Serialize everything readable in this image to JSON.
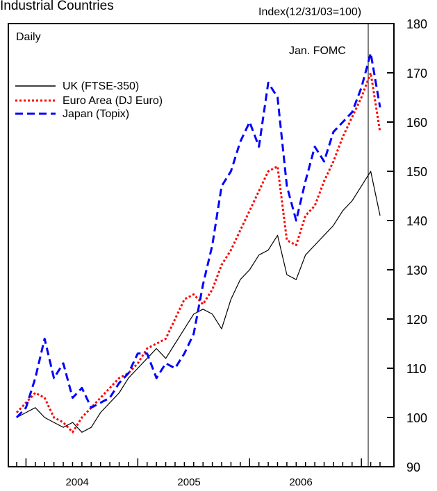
{
  "chart_data": {
    "type": "line",
    "title": "Industrial Countries",
    "unit_label": "Index(12/31/03=100)",
    "frequency_label": "Daily",
    "annotation": "Jan. FOMC",
    "x_tick_labels": [
      "2004",
      "2005",
      "2006"
    ],
    "ylim": [
      90,
      180
    ],
    "y_ticks": [
      90,
      100,
      110,
      120,
      130,
      140,
      150,
      160,
      170,
      180
    ],
    "xlim": [
      "2003-12",
      "2007-03"
    ],
    "grid": false,
    "legend_position": "top-left",
    "series": [
      {
        "name": "UK (FTSE-350)",
        "color": "#000000",
        "style": "solid",
        "x": [
          "2003-12",
          "2004-01",
          "2004-02",
          "2004-03",
          "2004-04",
          "2004-05",
          "2004-06",
          "2004-07",
          "2004-08",
          "2004-09",
          "2004-10",
          "2004-11",
          "2004-12",
          "2005-01",
          "2005-02",
          "2005-03",
          "2005-04",
          "2005-05",
          "2005-06",
          "2005-07",
          "2005-08",
          "2005-09",
          "2005-10",
          "2005-11",
          "2005-12",
          "2006-01",
          "2006-02",
          "2006-03",
          "2006-04",
          "2006-05",
          "2006-06",
          "2006-07",
          "2006-08",
          "2006-09",
          "2006-10",
          "2006-11",
          "2006-12",
          "2007-01",
          "2007-02",
          "2007-03"
        ],
        "values": [
          100,
          101,
          102,
          100,
          99,
          98,
          99,
          97,
          98,
          101,
          103,
          105,
          108,
          110,
          112,
          114,
          112,
          115,
          118,
          121,
          122,
          121,
          118,
          124,
          128,
          130,
          133,
          134,
          137,
          129,
          128,
          133,
          135,
          137,
          139,
          142,
          144,
          147,
          150,
          141
        ]
      },
      {
        "name": "Euro Area (DJ Euro)",
        "color": "#ff0000",
        "style": "dotted",
        "x": [
          "2003-12",
          "2004-01",
          "2004-02",
          "2004-03",
          "2004-04",
          "2004-05",
          "2004-06",
          "2004-07",
          "2004-08",
          "2004-09",
          "2004-10",
          "2004-11",
          "2004-12",
          "2005-01",
          "2005-02",
          "2005-03",
          "2005-04",
          "2005-05",
          "2005-06",
          "2005-07",
          "2005-08",
          "2005-09",
          "2005-10",
          "2005-11",
          "2005-12",
          "2006-01",
          "2006-02",
          "2006-03",
          "2006-04",
          "2006-05",
          "2006-06",
          "2006-07",
          "2006-08",
          "2006-09",
          "2006-10",
          "2006-11",
          "2006-12",
          "2007-01",
          "2007-02",
          "2007-03"
        ],
        "values": [
          101,
          103,
          105,
          104,
          100,
          99,
          97,
          100,
          102,
          104,
          106,
          108,
          109,
          111,
          114,
          115,
          116,
          120,
          124,
          125,
          123,
          126,
          131,
          134,
          138,
          142,
          146,
          150,
          151,
          136,
          135,
          141,
          143,
          148,
          152,
          157,
          161,
          165,
          170,
          158
        ]
      },
      {
        "name": "Japan (Topix)",
        "color": "#0000ff",
        "style": "dashed",
        "x": [
          "2003-12",
          "2004-01",
          "2004-02",
          "2004-03",
          "2004-04",
          "2004-05",
          "2004-06",
          "2004-07",
          "2004-08",
          "2004-09",
          "2004-10",
          "2004-11",
          "2004-12",
          "2005-01",
          "2005-02",
          "2005-03",
          "2005-04",
          "2005-05",
          "2005-06",
          "2005-07",
          "2005-08",
          "2005-09",
          "2005-10",
          "2005-11",
          "2005-12",
          "2006-01",
          "2006-02",
          "2006-03",
          "2006-04",
          "2006-05",
          "2006-06",
          "2006-07",
          "2006-08",
          "2006-09",
          "2006-10",
          "2006-11",
          "2006-12",
          "2007-01",
          "2007-02",
          "2007-03"
        ],
        "values": [
          100,
          102,
          108,
          116,
          108,
          111,
          104,
          106,
          102,
          103,
          104,
          107,
          109,
          113,
          113,
          108,
          111,
          110,
          113,
          117,
          127,
          135,
          147,
          150,
          156,
          160,
          155,
          168,
          165,
          147,
          140,
          148,
          155,
          152,
          158,
          160,
          162,
          167,
          174,
          163
        ]
      }
    ]
  }
}
